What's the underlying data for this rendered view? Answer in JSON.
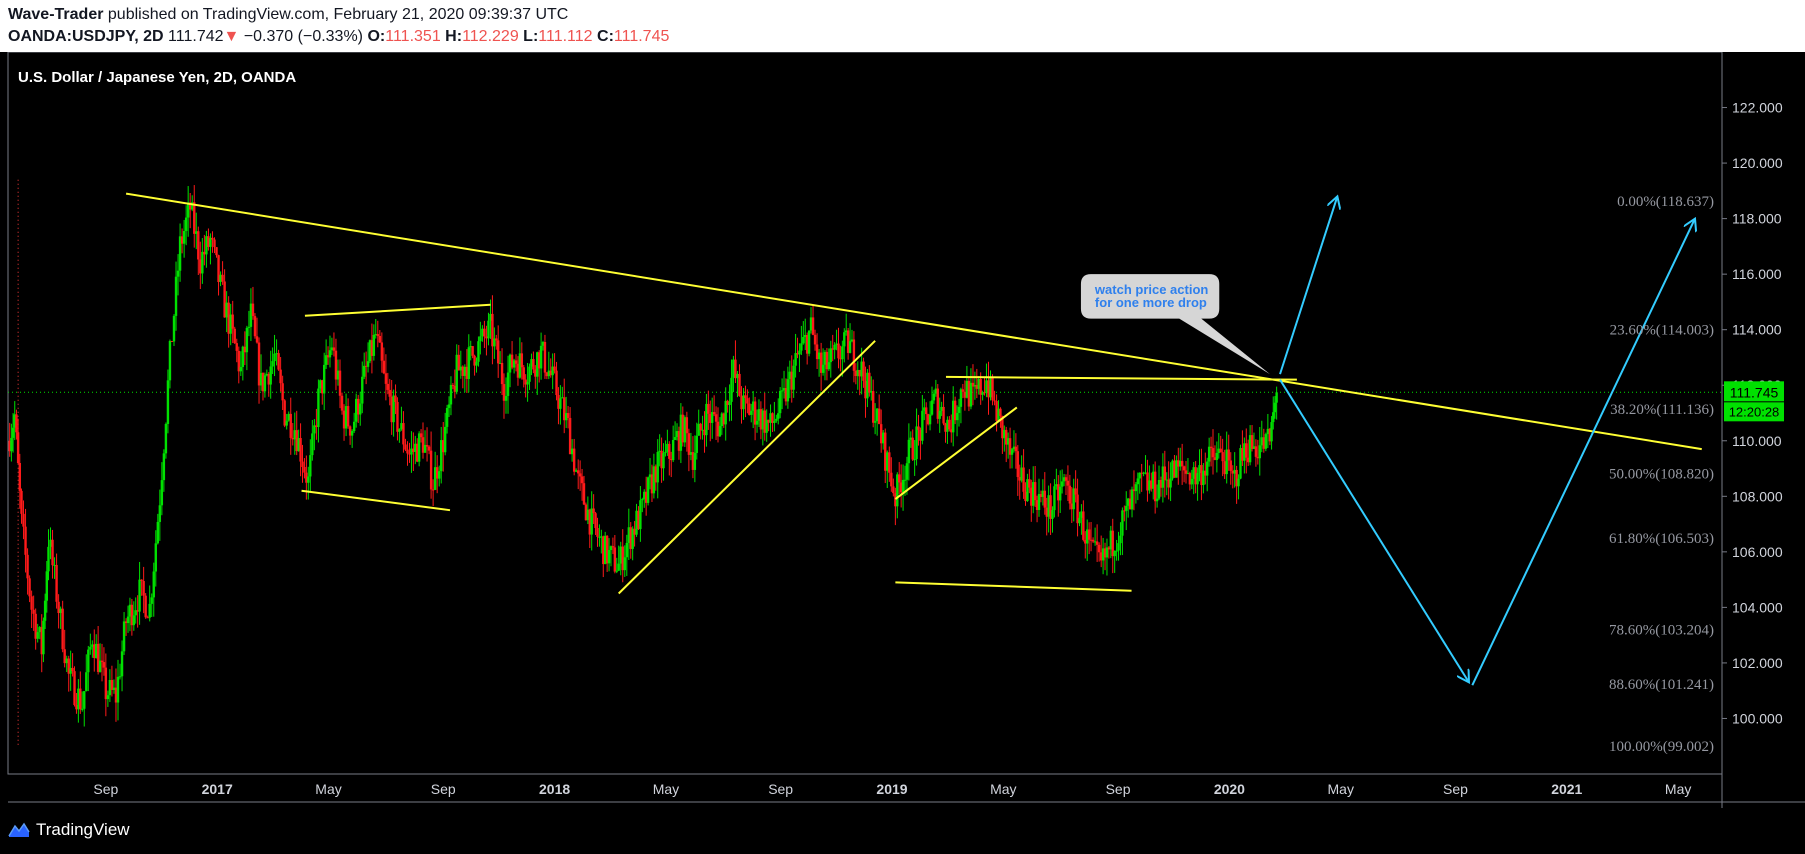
{
  "header": {
    "author": "Wave-Trader",
    "published_text": "published on TradingView.com, February 21, 2020 09:39:37 UTC",
    "symbol": "OANDA:USDJPY, 2D",
    "last": "111.742",
    "change_arrow": "▼",
    "change": "−0.370 (−0.33%)",
    "o_label": "O:",
    "o_value": "111.351",
    "h_label": "H:",
    "h_value": "112.229",
    "l_label": "L:",
    "l_value": "111.112",
    "c_label": "C:",
    "c_value": "111.745"
  },
  "footer": {
    "logo_text": "TradingView",
    "logo_icon": "tradingview-logo-icon"
  },
  "chart_data": {
    "type": "candlestick",
    "title": "U.S. Dollar / Japanese Yen, 2D, OANDA",
    "ylim": [
      98.0,
      124.0
    ],
    "y_ticks": [
      "100.000",
      "102.000",
      "104.000",
      "106.000",
      "108.000",
      "110.000",
      "112.000",
      "114.000",
      "116.000",
      "118.000",
      "120.000",
      "122.000"
    ],
    "x_ticks": [
      {
        "label": "Sep",
        "t": 2016.67,
        "bold": false
      },
      {
        "label": "2017",
        "t": 2017.0,
        "bold": true
      },
      {
        "label": "May",
        "t": 2017.33,
        "bold": false
      },
      {
        "label": "Sep",
        "t": 2017.67,
        "bold": false
      },
      {
        "label": "2018",
        "t": 2018.0,
        "bold": true
      },
      {
        "label": "May",
        "t": 2018.33,
        "bold": false
      },
      {
        "label": "Sep",
        "t": 2018.67,
        "bold": false
      },
      {
        "label": "2019",
        "t": 2019.0,
        "bold": true
      },
      {
        "label": "May",
        "t": 2019.33,
        "bold": false
      },
      {
        "label": "Sep",
        "t": 2019.67,
        "bold": false
      },
      {
        "label": "2020",
        "t": 2020.0,
        "bold": true
      },
      {
        "label": "May",
        "t": 2020.33,
        "bold": false
      },
      {
        "label": "Sep",
        "t": 2020.67,
        "bold": false
      },
      {
        "label": "2021",
        "t": 2021.0,
        "bold": true
      },
      {
        "label": "May",
        "t": 2021.33,
        "bold": false
      }
    ],
    "x_range": [
      2016.38,
      2021.46
    ],
    "last_price_label": "111.745",
    "countdown_label": "12:20:28",
    "last_price": 111.745,
    "price_path": [
      [
        2016.38,
        110.0
      ],
      [
        2016.4,
        110.9
      ],
      [
        2016.42,
        107.0
      ],
      [
        2016.45,
        104.0
      ],
      [
        2016.48,
        102.5
      ],
      [
        2016.5,
        106.5
      ],
      [
        2016.53,
        104.0
      ],
      [
        2016.56,
        101.5
      ],
      [
        2016.6,
        100.5
      ],
      [
        2016.63,
        103.0
      ],
      [
        2016.67,
        101.0
      ],
      [
        2016.7,
        100.8
      ],
      [
        2016.73,
        103.5
      ],
      [
        2016.77,
        104.5
      ],
      [
        2016.8,
        104.0
      ],
      [
        2016.83,
        108.0
      ],
      [
        2016.86,
        113.0
      ],
      [
        2016.89,
        117.0
      ],
      [
        2016.92,
        118.4
      ],
      [
        2016.95,
        116.5
      ],
      [
        2016.98,
        117.2
      ],
      [
        2017.01,
        115.5
      ],
      [
        2017.04,
        114.0
      ],
      [
        2017.07,
        112.5
      ],
      [
        2017.1,
        114.5
      ],
      [
        2017.13,
        112.0
      ],
      [
        2017.17,
        113.0
      ],
      [
        2017.2,
        111.0
      ],
      [
        2017.23,
        110.5
      ],
      [
        2017.27,
        108.5
      ],
      [
        2017.3,
        111.5
      ],
      [
        2017.34,
        113.5
      ],
      [
        2017.37,
        111.0
      ],
      [
        2017.4,
        110.5
      ],
      [
        2017.43,
        112.0
      ],
      [
        2017.47,
        113.8
      ],
      [
        2017.5,
        111.8
      ],
      [
        2017.54,
        110.5
      ],
      [
        2017.57,
        109.5
      ],
      [
        2017.61,
        110.0
      ],
      [
        2017.64,
        108.5
      ],
      [
        2017.67,
        110.0
      ],
      [
        2017.71,
        112.5
      ],
      [
        2017.74,
        112.8
      ],
      [
        2017.78,
        113.5
      ],
      [
        2017.81,
        114.0
      ],
      [
        2017.85,
        112.0
      ],
      [
        2017.88,
        113.0
      ],
      [
        2017.92,
        112.5
      ],
      [
        2017.96,
        113.2
      ],
      [
        2018.0,
        112.0
      ],
      [
        2018.04,
        110.5
      ],
      [
        2018.07,
        108.5
      ],
      [
        2018.11,
        107.0
      ],
      [
        2018.15,
        106.0
      ],
      [
        2018.19,
        105.5
      ],
      [
        2018.22,
        106.5
      ],
      [
        2018.26,
        107.5
      ],
      [
        2018.3,
        109.0
      ],
      [
        2018.34,
        109.5
      ],
      [
        2018.38,
        110.5
      ],
      [
        2018.41,
        109.5
      ],
      [
        2018.45,
        111.0
      ],
      [
        2018.49,
        110.5
      ],
      [
        2018.53,
        112.5
      ],
      [
        2018.56,
        111.2
      ],
      [
        2018.6,
        111.0
      ],
      [
        2018.64,
        110.5
      ],
      [
        2018.68,
        111.5
      ],
      [
        2018.72,
        113.0
      ],
      [
        2018.76,
        114.0
      ],
      [
        2018.79,
        112.5
      ],
      [
        2018.83,
        113.0
      ],
      [
        2018.87,
        113.5
      ],
      [
        2018.91,
        112.5
      ],
      [
        2018.95,
        111.0
      ],
      [
        2018.98,
        109.5
      ],
      [
        2019.01,
        108.0
      ],
      [
        2019.05,
        109.5
      ],
      [
        2019.09,
        110.5
      ],
      [
        2019.13,
        111.5
      ],
      [
        2019.17,
        110.5
      ],
      [
        2019.21,
        112.0
      ],
      [
        2019.24,
        111.5
      ],
      [
        2019.28,
        112.2
      ],
      [
        2019.31,
        111.0
      ],
      [
        2019.35,
        109.5
      ],
      [
        2019.39,
        108.5
      ],
      [
        2019.43,
        108.0
      ],
      [
        2019.47,
        107.5
      ],
      [
        2019.51,
        108.5
      ],
      [
        2019.55,
        107.5
      ],
      [
        2019.59,
        106.0
      ],
      [
        2019.62,
        105.5
      ],
      [
        2019.66,
        106.5
      ],
      [
        2019.7,
        107.5
      ],
      [
        2019.74,
        108.5
      ],
      [
        2019.78,
        108.3
      ],
      [
        2019.82,
        108.8
      ],
      [
        2019.86,
        109.0
      ],
      [
        2019.9,
        108.7
      ],
      [
        2019.94,
        109.3
      ],
      [
        2019.98,
        109.5
      ],
      [
        2020.01,
        108.5
      ],
      [
        2020.05,
        109.8
      ],
      [
        2020.09,
        109.8
      ],
      [
        2020.12,
        110.0
      ],
      [
        2020.14,
        111.745
      ]
    ],
    "trendlines_yellow": [
      [
        [
          2016.73,
          118.9
        ],
        [
          2021.4,
          109.7
        ]
      ],
      [
        [
          2017.26,
          114.5
        ],
        [
          2017.81,
          114.9
        ]
      ],
      [
        [
          2017.25,
          108.2
        ],
        [
          2017.69,
          107.5
        ]
      ],
      [
        [
          2018.19,
          104.5
        ],
        [
          2018.95,
          113.6
        ]
      ],
      [
        [
          2019.01,
          107.9
        ],
        [
          2019.37,
          111.2
        ]
      ],
      [
        [
          2019.01,
          104.9
        ],
        [
          2019.71,
          104.6
        ]
      ],
      [
        [
          2019.16,
          112.3
        ],
        [
          2020.2,
          112.2
        ]
      ]
    ],
    "projections_cyan": [
      [
        [
          2020.15,
          112.4
        ],
        [
          2020.32,
          118.8
        ]
      ],
      [
        [
          2020.15,
          112.2
        ],
        [
          2020.71,
          101.3
        ]
      ],
      [
        [
          2020.72,
          101.2
        ],
        [
          2021.38,
          118.0
        ]
      ]
    ],
    "annotation": {
      "lines": [
        "watch price action",
        "for one more drop"
      ],
      "anchor_t": 2020.12,
      "anchor_price": 112.4,
      "box_t": [
        2019.56,
        2019.97
      ],
      "box_price": [
        114.4,
        116.0
      ]
    },
    "fib_levels": [
      {
        "label": "0.00%(118.637)",
        "price": 118.637
      },
      {
        "label": "23.60%(114.003)",
        "price": 114.003
      },
      {
        "label": "38.20%(111.136)",
        "price": 111.136
      },
      {
        "label": "50.00%(108.820)",
        "price": 108.82
      },
      {
        "label": "61.80%(106.503)",
        "price": 106.503
      },
      {
        "label": "78.60%(103.204)",
        "price": 103.204
      },
      {
        "label": "88.60%(101.241)",
        "price": 101.241
      },
      {
        "label": "100.00%(99.002)",
        "price": 99.002
      }
    ],
    "colors": {
      "up": "#00e000",
      "down": "#ff1a1a",
      "trend": "#ffff33",
      "proj": "#33ccff",
      "fib": "#9598a1"
    }
  }
}
